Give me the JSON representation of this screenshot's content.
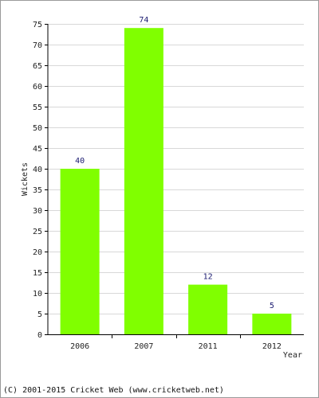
{
  "chart_data": {
    "type": "bar",
    "categories": [
      "2006",
      "2007",
      "2011",
      "2012"
    ],
    "values": [
      40,
      74,
      12,
      5
    ],
    "data_labels": [
      "40",
      "74",
      "12",
      "5"
    ],
    "xlabel": "Year",
    "ylabel": "Wickets",
    "ylim": [
      0,
      75
    ],
    "yticks": [
      0,
      5,
      10,
      15,
      20,
      25,
      30,
      35,
      40,
      45,
      50,
      55,
      60,
      65,
      70,
      75
    ],
    "grid": true,
    "bar_color": "#80ff00",
    "grid_color": "#d8d8d8"
  },
  "footer": {
    "text": "(C) 2001-2015 Cricket Web (www.cricketweb.net)"
  }
}
